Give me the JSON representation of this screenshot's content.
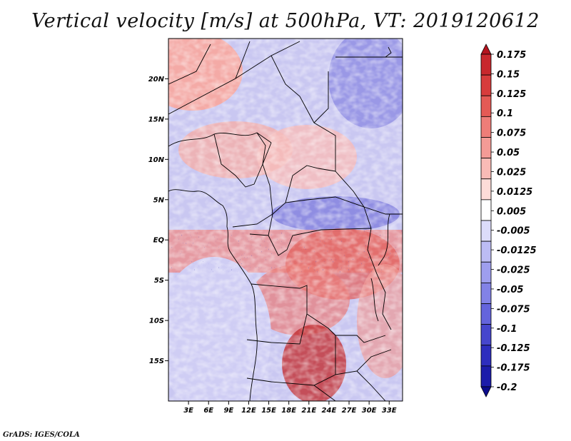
{
  "title": "Vertical velocity [m/s] at 500hPa, VT: 2019120612",
  "credit": "GrADS: IGES/COLA",
  "map": {
    "lon_range": [
      0,
      35
    ],
    "lat_range": [
      -20,
      25
    ],
    "lat_ticks": [
      {
        "label": "20N",
        "lat": 20
      },
      {
        "label": "15N",
        "lat": 15
      },
      {
        "label": "10N",
        "lat": 10
      },
      {
        "label": "5N",
        "lat": 5
      },
      {
        "label": "EQ",
        "lat": 0
      },
      {
        "label": "5S",
        "lat": -5
      },
      {
        "label": "10S",
        "lat": -10
      },
      {
        "label": "15S",
        "lat": -15
      }
    ],
    "lon_ticks": [
      {
        "label": "3E",
        "lon": 3
      },
      {
        "label": "6E",
        "lon": 6
      },
      {
        "label": "9E",
        "lon": 9
      },
      {
        "label": "12E",
        "lon": 12
      },
      {
        "label": "15E",
        "lon": 15
      },
      {
        "label": "18E",
        "lon": 18
      },
      {
        "label": "21E",
        "lon": 21
      },
      {
        "label": "24E",
        "lon": 24
      },
      {
        "label": "27E",
        "lon": 27
      },
      {
        "label": "30E",
        "lon": 30
      },
      {
        "label": "33E",
        "lon": 33
      }
    ]
  },
  "colorbar": {
    "labels": [
      "0.175",
      "0.15",
      "0.125",
      "0.1",
      "0.075",
      "0.05",
      "0.025",
      "0.0125",
      "0.005",
      "-0.005",
      "-0.0125",
      "-0.025",
      "-0.05",
      "-0.075",
      "-0.1",
      "-0.125",
      "-0.175",
      "-0.2"
    ],
    "colors": [
      "#b4141e",
      "#c8282d",
      "#d73c3c",
      "#e45a55",
      "#ee7d78",
      "#f49b96",
      "#f9bbb6",
      "#fddcd8",
      "#ffffff",
      "#dcdcfa",
      "#bcbcf4",
      "#9e9eee",
      "#8282e6",
      "#6464dc",
      "#4646cd",
      "#2d2dbe",
      "#1c1caa",
      "#0c0c8c"
    ]
  }
}
